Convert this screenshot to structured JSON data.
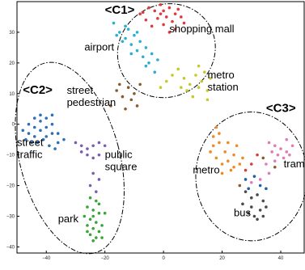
{
  "chart_data": {
    "type": "scatter",
    "title": "",
    "xlabel": "",
    "ylabel": "",
    "xlim": [
      -50,
      48
    ],
    "ylim": [
      -42,
      40
    ],
    "x_ticks": [
      -40,
      -20,
      0,
      20,
      40
    ],
    "y_ticks": [
      -40,
      -30,
      -20,
      -10,
      0,
      10,
      20,
      30
    ],
    "x_tick_labels": [
      "−40",
      "−20",
      "0",
      "20",
      "40"
    ],
    "y_tick_labels": [
      "−40",
      "−30",
      "−20",
      "−10",
      "0",
      "10",
      "20",
      "30"
    ],
    "grid": false,
    "series": [
      {
        "color": "#e03a3a",
        "points": [
          [
            -8,
            36
          ],
          [
            -5,
            38
          ],
          [
            -3,
            37
          ],
          [
            -1,
            39
          ],
          [
            0,
            37
          ],
          [
            2,
            38
          ],
          [
            4,
            36
          ],
          [
            5,
            37.5
          ],
          [
            -6,
            34
          ],
          [
            -2,
            34.5
          ],
          [
            1,
            35
          ],
          [
            3,
            33.5
          ],
          [
            6,
            35
          ],
          [
            7,
            33
          ],
          [
            -4,
            32
          ],
          [
            0,
            32.5
          ],
          [
            4,
            31
          ],
          [
            2,
            30
          ],
          [
            -7,
            36.5
          ],
          [
            -1,
            36
          ]
        ]
      },
      {
        "color": "#2ab0cf",
        "points": [
          [
            -17,
            33
          ],
          [
            -15,
            30
          ],
          [
            -13,
            28
          ],
          [
            -11,
            26
          ],
          [
            -9,
            24
          ],
          [
            -7,
            22
          ],
          [
            -5,
            20
          ],
          [
            -3,
            17
          ],
          [
            -12,
            31
          ],
          [
            -10,
            29
          ],
          [
            -8,
            27
          ],
          [
            -6,
            25
          ],
          [
            -4,
            23
          ],
          [
            -14,
            27
          ],
          [
            -16,
            29
          ],
          [
            -2,
            21
          ],
          [
            -9,
            30
          ],
          [
            -11,
            23
          ],
          [
            -13,
            32
          ],
          [
            -6,
            19
          ]
        ]
      },
      {
        "color": "#c8c82a",
        "points": [
          [
            5,
            18
          ],
          [
            7,
            15
          ],
          [
            9,
            13
          ],
          [
            11,
            16
          ],
          [
            13,
            14
          ],
          [
            15,
            11
          ],
          [
            12,
            19
          ],
          [
            8,
            11
          ],
          [
            10,
            9
          ],
          [
            14,
            17
          ],
          [
            6,
            12
          ],
          [
            16,
            15
          ],
          [
            3,
            16
          ],
          [
            1,
            14
          ],
          [
            -1,
            12
          ],
          [
            12,
            12
          ],
          [
            15,
            8
          ]
        ]
      },
      {
        "color": "#8b5a2b",
        "points": [
          [
            -12,
            12
          ],
          [
            -10,
            10
          ],
          [
            -14,
            9
          ],
          [
            -16,
            11
          ],
          [
            -11,
            8
          ],
          [
            -8,
            13
          ],
          [
            -18,
            6
          ],
          [
            -13,
            5
          ],
          [
            -9,
            6
          ],
          [
            -15,
            13
          ]
        ]
      },
      {
        "color": "#2e6fb5",
        "points": [
          [
            -48,
            -2
          ],
          [
            -46,
            0
          ],
          [
            -44,
            -1
          ],
          [
            -42,
            1
          ],
          [
            -40,
            -1
          ],
          [
            -38,
            0
          ],
          [
            -36,
            -3
          ],
          [
            -34,
            -5
          ],
          [
            -46,
            -3
          ],
          [
            -44,
            -4
          ],
          [
            -42,
            -2
          ],
          [
            -40,
            -4
          ],
          [
            -38,
            -3
          ],
          [
            -36,
            -6
          ],
          [
            -44,
            2
          ],
          [
            -42,
            3
          ],
          [
            -40,
            2
          ],
          [
            -38,
            3
          ],
          [
            -47,
            -5
          ],
          [
            -45,
            -6
          ],
          [
            -43,
            -6
          ],
          [
            -41,
            -5
          ],
          [
            -39,
            -7
          ],
          [
            -37,
            -8
          ]
        ]
      },
      {
        "color": "#7b5cb0",
        "points": [
          [
            -30,
            -6
          ],
          [
            -28,
            -7
          ],
          [
            -26,
            -8
          ],
          [
            -24,
            -7
          ],
          [
            -22,
            -6
          ],
          [
            -26,
            -10
          ],
          [
            -24,
            -11
          ],
          [
            -20,
            -7
          ],
          [
            -28,
            -9
          ],
          [
            -22,
            -10
          ],
          [
            -24,
            -16
          ],
          [
            -22,
            -18
          ],
          [
            -25,
            -20
          ],
          [
            -23,
            -22
          ]
        ]
      },
      {
        "color": "#3aa33a",
        "points": [
          [
            -25,
            -24
          ],
          [
            -23,
            -25
          ],
          [
            -26,
            -27
          ],
          [
            -24,
            -28
          ],
          [
            -22,
            -29
          ],
          [
            -25,
            -31
          ],
          [
            -23,
            -32
          ],
          [
            -26,
            -33
          ],
          [
            -24,
            -34
          ],
          [
            -22,
            -35
          ],
          [
            -25,
            -36
          ],
          [
            -23,
            -37
          ],
          [
            -24,
            -38
          ],
          [
            -21,
            -33
          ],
          [
            -27,
            -30
          ],
          [
            -22,
            -26
          ],
          [
            -26,
            -35
          ],
          [
            -24,
            -30
          ],
          [
            -20,
            -29
          ],
          [
            -21,
            -37
          ]
        ]
      },
      {
        "color": "#f08a20",
        "points": [
          [
            18,
            -1
          ],
          [
            17,
            -4
          ],
          [
            19,
            -6
          ],
          [
            16,
            -9
          ],
          [
            18,
            -11
          ],
          [
            20,
            -13
          ],
          [
            22,
            -12
          ],
          [
            24,
            -10
          ],
          [
            26,
            -13
          ],
          [
            23,
            -15
          ],
          [
            21,
            -9
          ],
          [
            19,
            -3
          ],
          [
            25,
            -7
          ],
          [
            27,
            -11
          ],
          [
            22,
            -6
          ],
          [
            20,
            -16
          ],
          [
            17,
            -7
          ],
          [
            24,
            -14
          ]
        ]
      },
      {
        "color": "#e07ab8",
        "points": [
          [
            36,
            -6
          ],
          [
            38,
            -7
          ],
          [
            40,
            -8
          ],
          [
            42,
            -9
          ],
          [
            44,
            -7
          ],
          [
            37,
            -9
          ],
          [
            39,
            -10
          ],
          [
            41,
            -11
          ],
          [
            43,
            -10
          ],
          [
            35,
            -13
          ],
          [
            38,
            -12
          ],
          [
            42,
            -5
          ],
          [
            33,
            -18
          ],
          [
            30,
            -19
          ],
          [
            36,
            -16
          ]
        ]
      },
      {
        "color": "#4a4a4a",
        "points": [
          [
            28,
            -22
          ],
          [
            30,
            -24
          ],
          [
            32,
            -23
          ],
          [
            34,
            -25
          ],
          [
            30,
            -27
          ],
          [
            33,
            -28
          ],
          [
            31,
            -30
          ],
          [
            35,
            -27
          ],
          [
            29,
            -29
          ],
          [
            32,
            -31
          ],
          [
            27,
            -26
          ],
          [
            34,
            -30
          ]
        ]
      },
      {
        "color": "#1f5fa8",
        "points": [
          [
            31,
            -17
          ],
          [
            29,
            -21
          ],
          [
            33,
            -20
          ],
          [
            28,
            -18
          ],
          [
            35,
            -21
          ]
        ]
      },
      {
        "color": "#d93c3c",
        "points": [
          [
            30,
            -13
          ],
          [
            32,
            -10
          ],
          [
            28,
            -15
          ]
        ]
      },
      {
        "color": "#8b5a2b",
        "points": [
          [
            26,
            -20
          ],
          [
            38,
            -14
          ],
          [
            34,
            -11
          ]
        ]
      }
    ],
    "annotations": [
      {
        "text": "<C1>",
        "x": -20,
        "y": 36,
        "kind": "cluster"
      },
      {
        "text": "<C2>",
        "x": -48,
        "y": 10,
        "kind": "cluster"
      },
      {
        "text": "<C3>",
        "x": 35,
        "y": 4,
        "kind": "cluster"
      },
      {
        "text": "shopping mall",
        "x": 2,
        "y": 30,
        "kind": "label"
      },
      {
        "text": "airport",
        "x": -27,
        "y": 24,
        "kind": "label"
      },
      {
        "text": "metro",
        "x": 15,
        "y": 15,
        "kind": "label"
      },
      {
        "text": "station",
        "x": 15,
        "y": 11,
        "kind": "label"
      },
      {
        "text": "street",
        "x": -33,
        "y": 10,
        "kind": "label"
      },
      {
        "text": "pedestrian",
        "x": -33,
        "y": 6,
        "kind": "label"
      },
      {
        "text": "street",
        "x": -50,
        "y": -7,
        "kind": "label"
      },
      {
        "text": "traffic",
        "x": -50,
        "y": -11,
        "kind": "label"
      },
      {
        "text": "public",
        "x": -20,
        "y": -11,
        "kind": "label"
      },
      {
        "text": "square",
        "x": -20,
        "y": -15,
        "kind": "label"
      },
      {
        "text": "metro",
        "x": 10,
        "y": -16,
        "kind": "label"
      },
      {
        "text": "tram",
        "x": 41,
        "y": -14,
        "kind": "label"
      },
      {
        "text": "bus",
        "x": 24,
        "y": -30,
        "kind": "label"
      },
      {
        "text": "park",
        "x": -36,
        "y": -32,
        "kind": "label"
      }
    ],
    "clusters": [
      {
        "name": "C1",
        "cx": 1,
        "cy": 24,
        "rx": 17,
        "ry": 15,
        "rotate": -30
      },
      {
        "name": "C2",
        "cx": -32,
        "cy": -11,
        "rx": 17,
        "ry": 32,
        "rotate": -15
      },
      {
        "name": "C3",
        "cx": 30,
        "cy": -17,
        "rx": 19,
        "ry": 21,
        "rotate": 0
      }
    ]
  }
}
